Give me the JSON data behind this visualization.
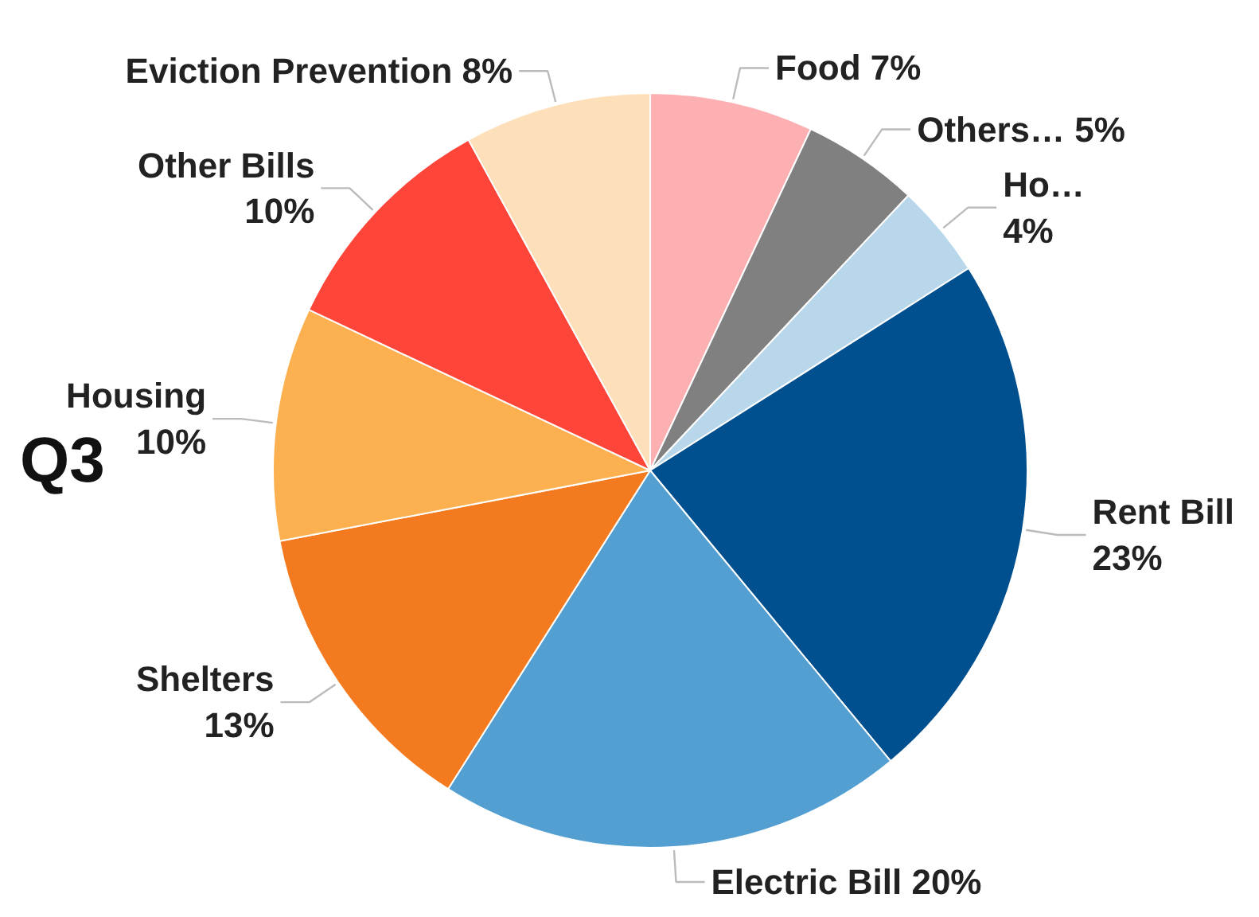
{
  "chart_data": {
    "type": "pie",
    "title": "Q3",
    "categories": [
      "Food",
      "Others…",
      "Ho…",
      "Rent Bill",
      "Electric Bill",
      "Shelters",
      "Housing",
      "Other Bills",
      "Eviction Prevention"
    ],
    "values": [
      7,
      5,
      4,
      23,
      20,
      13,
      10,
      10,
      8
    ],
    "value_labels": [
      "7%",
      "5%",
      "4%",
      "23%",
      "20%",
      "13%",
      "10%",
      "10%",
      "8%"
    ],
    "colors": [
      "#fdb0b1",
      "#808080",
      "#b9d7ea",
      "#00508f",
      "#549fd2",
      "#f47a1f",
      "#fdb04f",
      "#fe4539",
      "#fde0b9"
    ]
  }
}
